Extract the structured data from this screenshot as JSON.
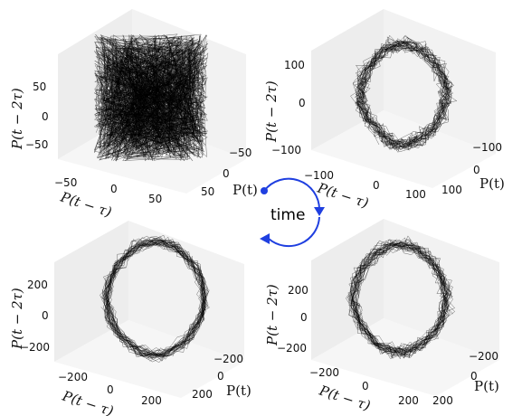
{
  "figure": {
    "center_label": "time",
    "arrow_color": "#1f3fe0"
  },
  "chart_data": [
    {
      "type": "3d-line",
      "panel": "top-left",
      "pattern": "chaotic",
      "xlabel": "P(t − τ)",
      "ylabel": "P(t)",
      "zlabel": "P(t − 2τ)",
      "x_ticks": [
        "−50",
        "0",
        "50"
      ],
      "y_ticks": [
        "−50",
        "0",
        "50"
      ],
      "z_ticks": [
        "−50",
        "0",
        "50"
      ],
      "range": [
        -70,
        70
      ]
    },
    {
      "type": "3d-line",
      "panel": "top-right",
      "pattern": "partial-cycle",
      "xlabel": "P(t − τ)",
      "ylabel": "P(t)",
      "zlabel": "P(t − 2τ)",
      "x_ticks": [
        "−100",
        "0",
        "100"
      ],
      "y_ticks": [
        "−100",
        "0",
        "100"
      ],
      "z_ticks": [
        "−100",
        "0",
        "100"
      ],
      "range": [
        -130,
        130
      ]
    },
    {
      "type": "3d-line",
      "panel": "bottom-left",
      "pattern": "limit-cycle",
      "xlabel": "P(t − τ)",
      "ylabel": "P(t)",
      "zlabel": "P(t − 2τ)",
      "x_ticks": [
        "−200",
        "0",
        "200"
      ],
      "y_ticks": [
        "−200",
        "0",
        "200"
      ],
      "z_ticks": [
        "−200",
        "0",
        "200"
      ],
      "range": [
        -260,
        260
      ]
    },
    {
      "type": "3d-line",
      "panel": "bottom-right",
      "pattern": "noisy-cycle",
      "xlabel": "P(t − τ)",
      "ylabel": "P(t)",
      "zlabel": "P(t − 2τ)",
      "x_ticks": [
        "−200",
        "0",
        "200"
      ],
      "y_ticks": [
        "−200",
        "0",
        "200"
      ],
      "z_ticks": [
        "−200",
        "0",
        "200"
      ],
      "range": [
        -260,
        260
      ]
    }
  ]
}
